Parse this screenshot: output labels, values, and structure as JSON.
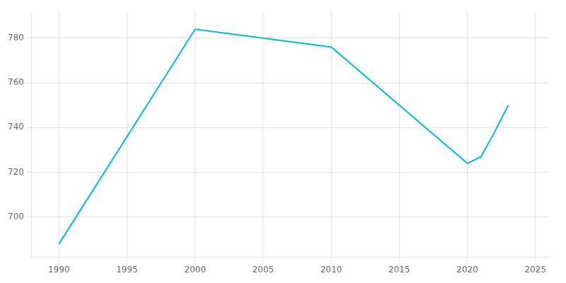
{
  "chart_data": {
    "type": "line",
    "x": [
      1990,
      2000,
      2010,
      2020,
      2021,
      2022,
      2023
    ],
    "values": [
      688,
      784,
      776,
      724,
      727,
      738,
      750
    ],
    "color": "#00BCD4",
    "xlim": [
      1988,
      2026
    ],
    "ylim": [
      682,
      792
    ],
    "xticks": [
      1990,
      1995,
      2000,
      2005,
      2010,
      2015,
      2020,
      2025
    ],
    "yticks": [
      700,
      720,
      740,
      760,
      780
    ],
    "grid": true
  }
}
